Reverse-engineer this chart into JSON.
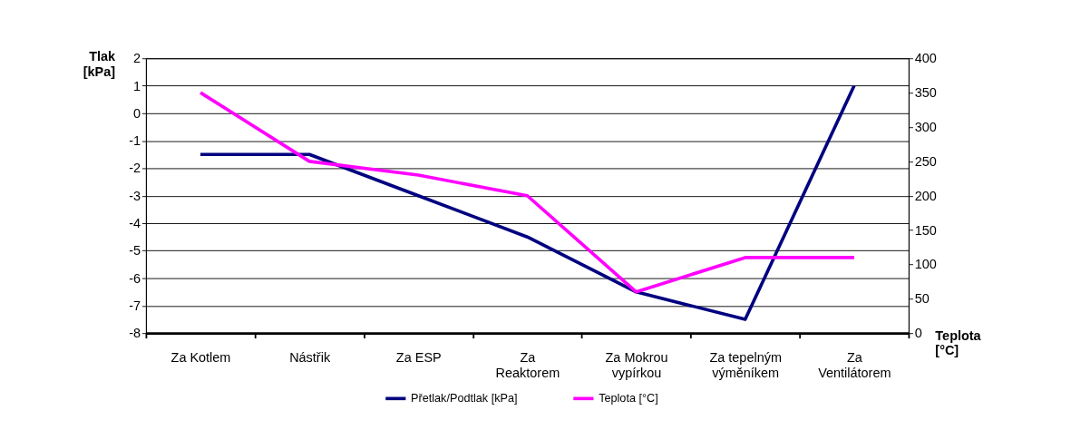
{
  "chart_data": {
    "type": "line",
    "ylabel": "Tlak [kPa]",
    "y2label": "Teplota [°C]",
    "categories": [
      "Za Kotlem",
      "Nástřik",
      "Za ESP",
      "Za Reaktorem",
      "Za Mokrou vypírkou",
      "Za tepelným výměníkem",
      "Za Ventilátorem"
    ],
    "series": [
      {
        "name": "Přetlak/Podtlak [kPa]",
        "color": "#000080",
        "values": [
          -1.5,
          -1.5,
          -3,
          -4.5,
          -6.5,
          -7.5,
          1
        ]
      },
      {
        "name": "Teplota [°C]",
        "color": "#ff00ff",
        "axis": "y2",
        "values": [
          350,
          250,
          230,
          200,
          60,
          110,
          110
        ]
      }
    ],
    "ylim": [
      -8,
      2
    ],
    "yticks": [
      -8,
      -7,
      -6,
      -5,
      -4,
      -3,
      -2,
      -1,
      0,
      1,
      2
    ],
    "y2lim": [
      0,
      400
    ],
    "y2ticks": [
      0,
      50,
      100,
      150,
      200,
      250,
      300,
      350,
      400
    ],
    "grid": "y",
    "legend": "bottom",
    "marker": "none",
    "line_style": "solid"
  }
}
